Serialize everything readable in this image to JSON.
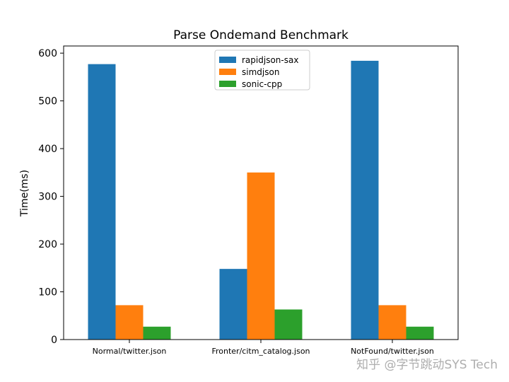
{
  "chart_data": {
    "type": "bar",
    "title": "Parse Ondemand Benchmark",
    "xlabel": "",
    "ylabel": "Time(ms)",
    "ylim": [
      0,
      615
    ],
    "yticks": [
      0,
      100,
      200,
      300,
      400,
      500,
      600
    ],
    "categories": [
      "Normal/twitter.json",
      "Fronter/citm_catalog.json",
      "NotFound/twitter.json"
    ],
    "series": [
      {
        "name": "rapidjson-sax",
        "color": "#1f77b4",
        "values": [
          577,
          148,
          584
        ]
      },
      {
        "name": "simdjson",
        "color": "#ff7f0e",
        "values": [
          72,
          350,
          72
        ]
      },
      {
        "name": "sonic-cpp",
        "color": "#2ca02c",
        "values": [
          27,
          63,
          27
        ]
      }
    ],
    "legend": "upper-center",
    "grid": false
  },
  "watermark": "知乎 @字节跳动SYS Tech"
}
